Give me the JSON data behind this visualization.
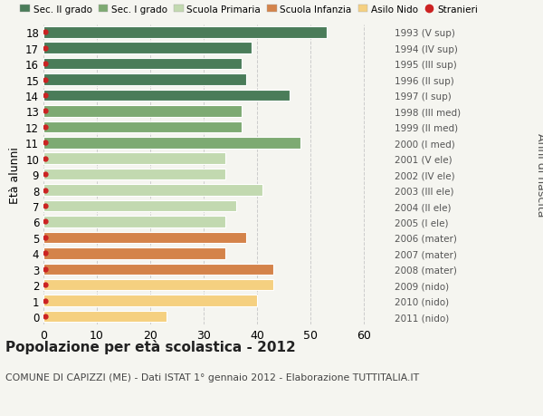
{
  "ages": [
    18,
    17,
    16,
    15,
    14,
    13,
    12,
    11,
    10,
    9,
    8,
    7,
    6,
    5,
    4,
    3,
    2,
    1,
    0
  ],
  "values": [
    53,
    39,
    37,
    38,
    46,
    37,
    37,
    48,
    34,
    34,
    41,
    36,
    34,
    38,
    34,
    43,
    43,
    40,
    23
  ],
  "year_labels": [
    "1993 (V sup)",
    "1994 (IV sup)",
    "1995 (III sup)",
    "1996 (II sup)",
    "1997 (I sup)",
    "1998 (III med)",
    "1999 (II med)",
    "2000 (I med)",
    "2001 (V ele)",
    "2002 (IV ele)",
    "2003 (III ele)",
    "2004 (II ele)",
    "2005 (I ele)",
    "2006 (mater)",
    "2007 (mater)",
    "2008 (mater)",
    "2009 (nido)",
    "2010 (nido)",
    "2011 (nido)"
  ],
  "bar_colors": [
    "#4a7c59",
    "#4a7c59",
    "#4a7c59",
    "#4a7c59",
    "#4a7c59",
    "#7daa72",
    "#7daa72",
    "#7daa72",
    "#c2d9b0",
    "#c2d9b0",
    "#c2d9b0",
    "#c2d9b0",
    "#c2d9b0",
    "#d4834a",
    "#d4834a",
    "#d4834a",
    "#f5d080",
    "#f5d080",
    "#f5d080"
  ],
  "legend_labels": [
    "Sec. II grado",
    "Sec. I grado",
    "Scuola Primaria",
    "Scuola Infanzia",
    "Asilo Nido",
    "Stranieri"
  ],
  "legend_colors": [
    "#4a7c59",
    "#7daa72",
    "#c2d9b0",
    "#d4834a",
    "#f5d080",
    "#cc2222"
  ],
  "stranieri_color": "#cc2222",
  "title": "Popolazione per età scolastica - 2012",
  "subtitle": "COMUNE DI CAPIZZI (ME) - Dati ISTAT 1° gennaio 2012 - Elaborazione TUTTITALIA.IT",
  "ylabel_left": "Età alunni",
  "ylabel_right": "Anni di nascita",
  "xlim": [
    0,
    65
  ],
  "xticks": [
    0,
    10,
    20,
    30,
    40,
    50,
    60
  ],
  "background_color": "#f5f5f0",
  "grid_color": "#cccccc",
  "bar_height": 0.72
}
